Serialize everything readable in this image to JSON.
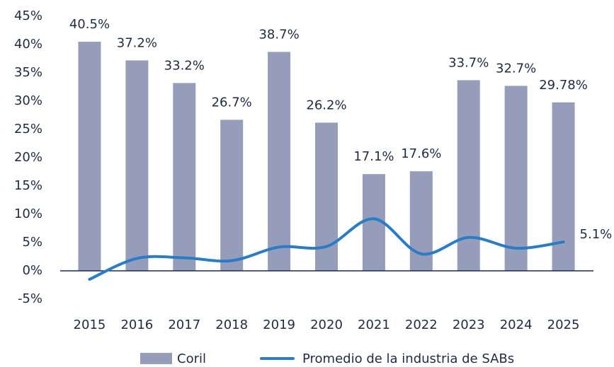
{
  "chart_data": {
    "type": "bar_line",
    "categories": [
      "2015",
      "2016",
      "2017",
      "2018",
      "2019",
      "2020",
      "2021",
      "2022",
      "2023",
      "2024",
      "2025"
    ],
    "series": [
      {
        "name": "Coril",
        "type": "bar",
        "color": "#959dbb",
        "values": [
          40.5,
          37.2,
          33.2,
          26.7,
          38.7,
          26.2,
          17.1,
          17.6,
          33.7,
          32.7,
          29.78
        ],
        "value_labels": [
          "40.5%",
          "37.2%",
          "33.2%",
          "26.7%",
          "38.7%",
          "26.2%",
          "17.1%",
          "17.6%",
          "33.7%",
          "32.7%",
          "29.78%"
        ]
      },
      {
        "name": "Promedio de la industria de SABs",
        "type": "line",
        "color": "#2a7cc7",
        "values": [
          -1.5,
          2.2,
          2.3,
          1.8,
          4.2,
          4.3,
          9.2,
          3.0,
          5.9,
          4.0,
          5.1
        ],
        "value_labels": [
          null,
          null,
          null,
          null,
          null,
          null,
          null,
          null,
          null,
          null,
          "5.1%"
        ]
      }
    ],
    "ylim": [
      -5,
      45
    ],
    "yticks": [
      {
        "value": -5,
        "label": "-5%"
      },
      {
        "value": 0,
        "label": "0%"
      },
      {
        "value": 5,
        "label": "5%"
      },
      {
        "value": 10,
        "label": "10%"
      },
      {
        "value": 15,
        "label": "15%"
      },
      {
        "value": 20,
        "label": "20%"
      },
      {
        "value": 25,
        "label": "25%"
      },
      {
        "value": 30,
        "label": "30%"
      },
      {
        "value": 35,
        "label": "35%"
      },
      {
        "value": 40,
        "label": "40%"
      },
      {
        "value": 45,
        "label": "45%"
      }
    ],
    "legend": "bottom"
  }
}
